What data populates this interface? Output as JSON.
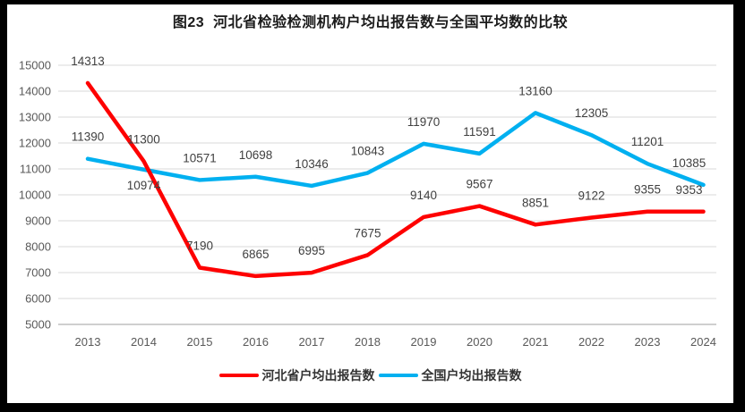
{
  "chart_data": {
    "type": "line",
    "title": "图23  河北省检验检测机构户均出报告数与全国平均数的比较",
    "categories": [
      "2013",
      "2014",
      "2015",
      "2016",
      "2017",
      "2018",
      "2019",
      "2020",
      "2021",
      "2022",
      "2023",
      "2024"
    ],
    "series": [
      {
        "name": "河北省户均出报告数",
        "color": "#fe0000",
        "values": [
          14313,
          11300,
          7190,
          6865,
          6995,
          7675,
          9140,
          9567,
          8851,
          9122,
          9355,
          9353
        ]
      },
      {
        "name": "全国户均出报告数",
        "color": "#00b0f0",
        "values": [
          11390,
          10974,
          10571,
          10698,
          10346,
          10843,
          11970,
          11591,
          13160,
          12305,
          11201,
          10385
        ]
      }
    ],
    "xlabel": "",
    "ylabel": "",
    "ylim": [
      5000,
      15000
    ],
    "yticks": [
      5000,
      6000,
      7000,
      8000,
      9000,
      10000,
      11000,
      12000,
      13000,
      14000,
      15000
    ],
    "grid": true,
    "data_labels": true,
    "legend_position": "bottom",
    "label_overrides": {
      "below": [
        [
          1,
          1
        ]
      ]
    },
    "colors": {
      "gridline": "#d9d9d9",
      "axis_line": "#bfbfbf",
      "axis_text": "#595959",
      "label_text": "#404040",
      "title_text": "#1a1a1a",
      "frame": "#000000",
      "background": "#ffffff"
    }
  }
}
